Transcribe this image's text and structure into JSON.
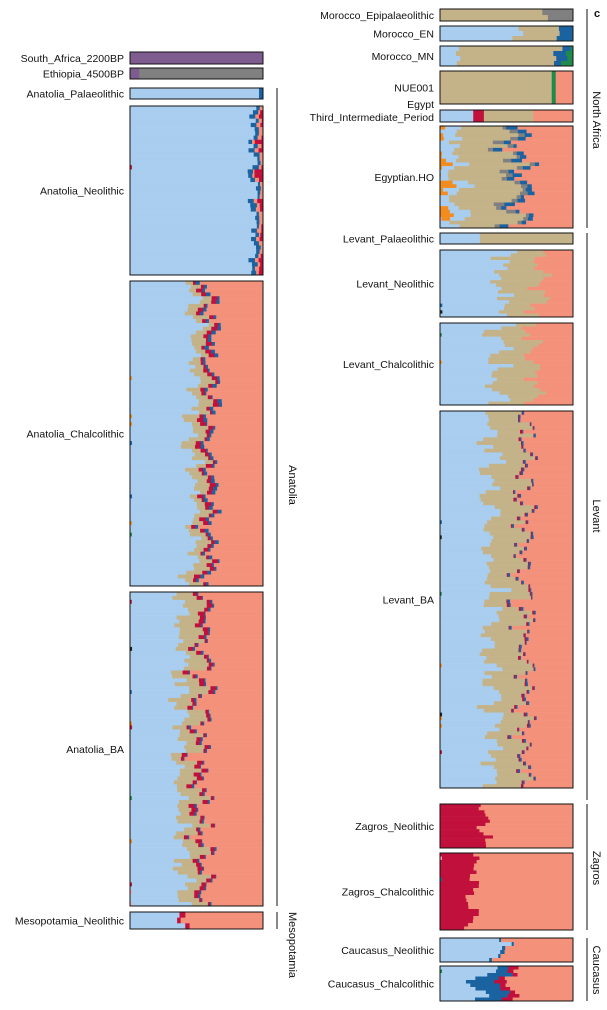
{
  "panel_letter": "c",
  "chart_data": {
    "type": "stacked-bar",
    "description_scope": "ADMIXTURE-style ancestry proportions per individual (columns of horizontal bars) grouped by population",
    "colors": {
      "blue": "#a9cdef",
      "tan": "#c4b288",
      "salmon": "#f4917a",
      "crimson": "#c0103b",
      "navy": "#1a62a0",
      "grey": "#808080",
      "purple": "#7f5c8f",
      "green": "#1f8a4a",
      "orange": "#f28c1e",
      "yellow": "#f3c30a",
      "black": "#222222",
      "pink": "#f2a6b6",
      "white": "#ffffff"
    },
    "groups": [
      {
        "name": "South_Africa_2200BP",
        "column": "left",
        "n": 1,
        "base": "purple",
        "comp": [
          [
            "purple",
            1.0
          ]
        ]
      },
      {
        "name": "Ethiopia_4500BP",
        "column": "left",
        "n": 1,
        "base": "grey",
        "comp": [
          [
            "purple",
            0.07
          ],
          [
            "grey",
            0.93
          ]
        ]
      },
      {
        "name": "Anatolia_Palaeolithic",
        "column": "left",
        "n": 1,
        "base": "blue",
        "comp": [
          [
            "blue",
            0.97
          ],
          [
            "navy",
            0.03
          ]
        ]
      },
      {
        "name": "Anatolia_Neolithic",
        "column": "left",
        "n": 40,
        "base": "blue",
        "comp": [
          [
            "blue",
            0.94
          ],
          [
            "navy",
            0.03
          ],
          [
            "salmon",
            0.02
          ],
          [
            "crimson",
            0.01
          ]
        ]
      },
      {
        "name": "Anatolia_Chalcolithic",
        "column": "left",
        "n": 80,
        "base": "blue",
        "comp": [
          [
            "blue",
            0.48
          ],
          [
            "tan",
            0.08
          ],
          [
            "crimson",
            0.03
          ],
          [
            "navy",
            0.02
          ],
          [
            "salmon",
            0.39
          ]
        ]
      },
      {
        "name": "Anatolia_BA",
        "column": "left",
        "n": 80,
        "base": "blue",
        "comp": [
          [
            "blue",
            0.39
          ],
          [
            "tan",
            0.12
          ],
          [
            "crimson",
            0.03
          ],
          [
            "navy",
            0.01
          ],
          [
            "salmon",
            0.45
          ]
        ]
      },
      {
        "name": "Mesopotamia_Neolithic",
        "column": "left",
        "n": 3,
        "base": "blue",
        "comp": [
          [
            "blue",
            0.35
          ],
          [
            "crimson",
            0.03
          ],
          [
            "salmon",
            0.62
          ]
        ]
      },
      {
        "name": "Morocco_Epipalaeolithic",
        "column": "right",
        "n": 2,
        "base": "tan",
        "comp": [
          [
            "tan",
            0.75
          ],
          [
            "grey",
            0.25
          ]
        ]
      },
      {
        "name": "Morocco_EN",
        "column": "right",
        "n": 3,
        "base": "blue",
        "comp": [
          [
            "blue",
            0.55
          ],
          [
            "tan",
            0.3
          ],
          [
            "navy",
            0.15
          ]
        ]
      },
      {
        "name": "Morocco_MN",
        "column": "right",
        "n": 4,
        "base": "blue",
        "comp": [
          [
            "blue",
            0.18
          ],
          [
            "tan",
            0.72
          ],
          [
            "navy",
            0.07
          ],
          [
            "green",
            0.03
          ]
        ]
      },
      {
        "name": "NUE001",
        "column": "right",
        "n": 1,
        "base": "tan",
        "comp": [
          [
            "tan",
            0.84
          ],
          [
            "green",
            0.03
          ],
          [
            "salmon",
            0.13
          ]
        ]
      },
      {
        "name": "Egypt\nThird_Intermediate_Period",
        "column": "right",
        "n": 1,
        "base": "blue",
        "comp": [
          [
            "blue",
            0.25
          ],
          [
            "crimson",
            0.08
          ],
          [
            "tan",
            0.37
          ],
          [
            "salmon",
            0.3
          ]
        ]
      },
      {
        "name": "Egyptian.HO",
        "column": "right",
        "n": 28,
        "base": "blue",
        "comp": [
          [
            "orange",
            0.02
          ],
          [
            "blue",
            0.1
          ],
          [
            "tan",
            0.38
          ],
          [
            "grey",
            0.05
          ],
          [
            "navy",
            0.05
          ],
          [
            "salmon",
            0.4
          ]
        ]
      },
      {
        "name": "Levant_Palaeolithic",
        "column": "right",
        "n": 1,
        "base": "blue",
        "comp": [
          [
            "blue",
            0.3
          ],
          [
            "tan",
            0.7
          ]
        ]
      },
      {
        "name": "Levant_Neolithic",
        "column": "right",
        "n": 20,
        "base": "blue",
        "comp": [
          [
            "blue",
            0.45
          ],
          [
            "tan",
            0.3
          ],
          [
            "salmon",
            0.25
          ]
        ]
      },
      {
        "name": "Levant_Chalcolithic",
        "column": "right",
        "n": 24,
        "base": "blue",
        "comp": [
          [
            "blue",
            0.45
          ],
          [
            "tan",
            0.25
          ],
          [
            "salmon",
            0.3
          ]
        ]
      },
      {
        "name": "Levant_BA",
        "column": "right",
        "n": 100,
        "base": "blue",
        "comp": [
          [
            "blue",
            0.4
          ],
          [
            "tan",
            0.22
          ],
          [
            "crimson",
            0.01
          ],
          [
            "navy",
            0.01
          ],
          [
            "salmon",
            0.36
          ]
        ]
      },
      {
        "name": "Zagros_Neolithic",
        "column": "right",
        "n": 14,
        "base": "crimson",
        "comp": [
          [
            "crimson",
            0.33
          ],
          [
            "salmon",
            0.67
          ]
        ]
      },
      {
        "name": "Zagros_Chalcolithic",
        "column": "right",
        "n": 22,
        "base": "crimson",
        "comp": [
          [
            "crimson",
            0.25
          ],
          [
            "salmon",
            0.75
          ]
        ]
      },
      {
        "name": "Caucasus_Neolithic",
        "column": "right",
        "n": 6,
        "base": "blue",
        "comp": [
          [
            "blue",
            0.45
          ],
          [
            "navy",
            0.02
          ],
          [
            "salmon",
            0.53
          ]
        ]
      },
      {
        "name": "Caucasus_Chalcolithic",
        "column": "right",
        "n": 10,
        "base": "blue",
        "comp": [
          [
            "blue",
            0.32
          ],
          [
            "navy",
            0.15
          ],
          [
            "crimson",
            0.06
          ],
          [
            "salmon",
            0.47
          ]
        ]
      }
    ],
    "regions": [
      {
        "name": "Anatolia",
        "column": "left"
      },
      {
        "name": "Mesopotamia",
        "column": "left"
      },
      {
        "name": "North Africa",
        "column": "right"
      },
      {
        "name": "Levant",
        "column": "right"
      },
      {
        "name": "Zagros",
        "column": "right"
      },
      {
        "name": "Caucasus",
        "column": "right"
      }
    ]
  }
}
